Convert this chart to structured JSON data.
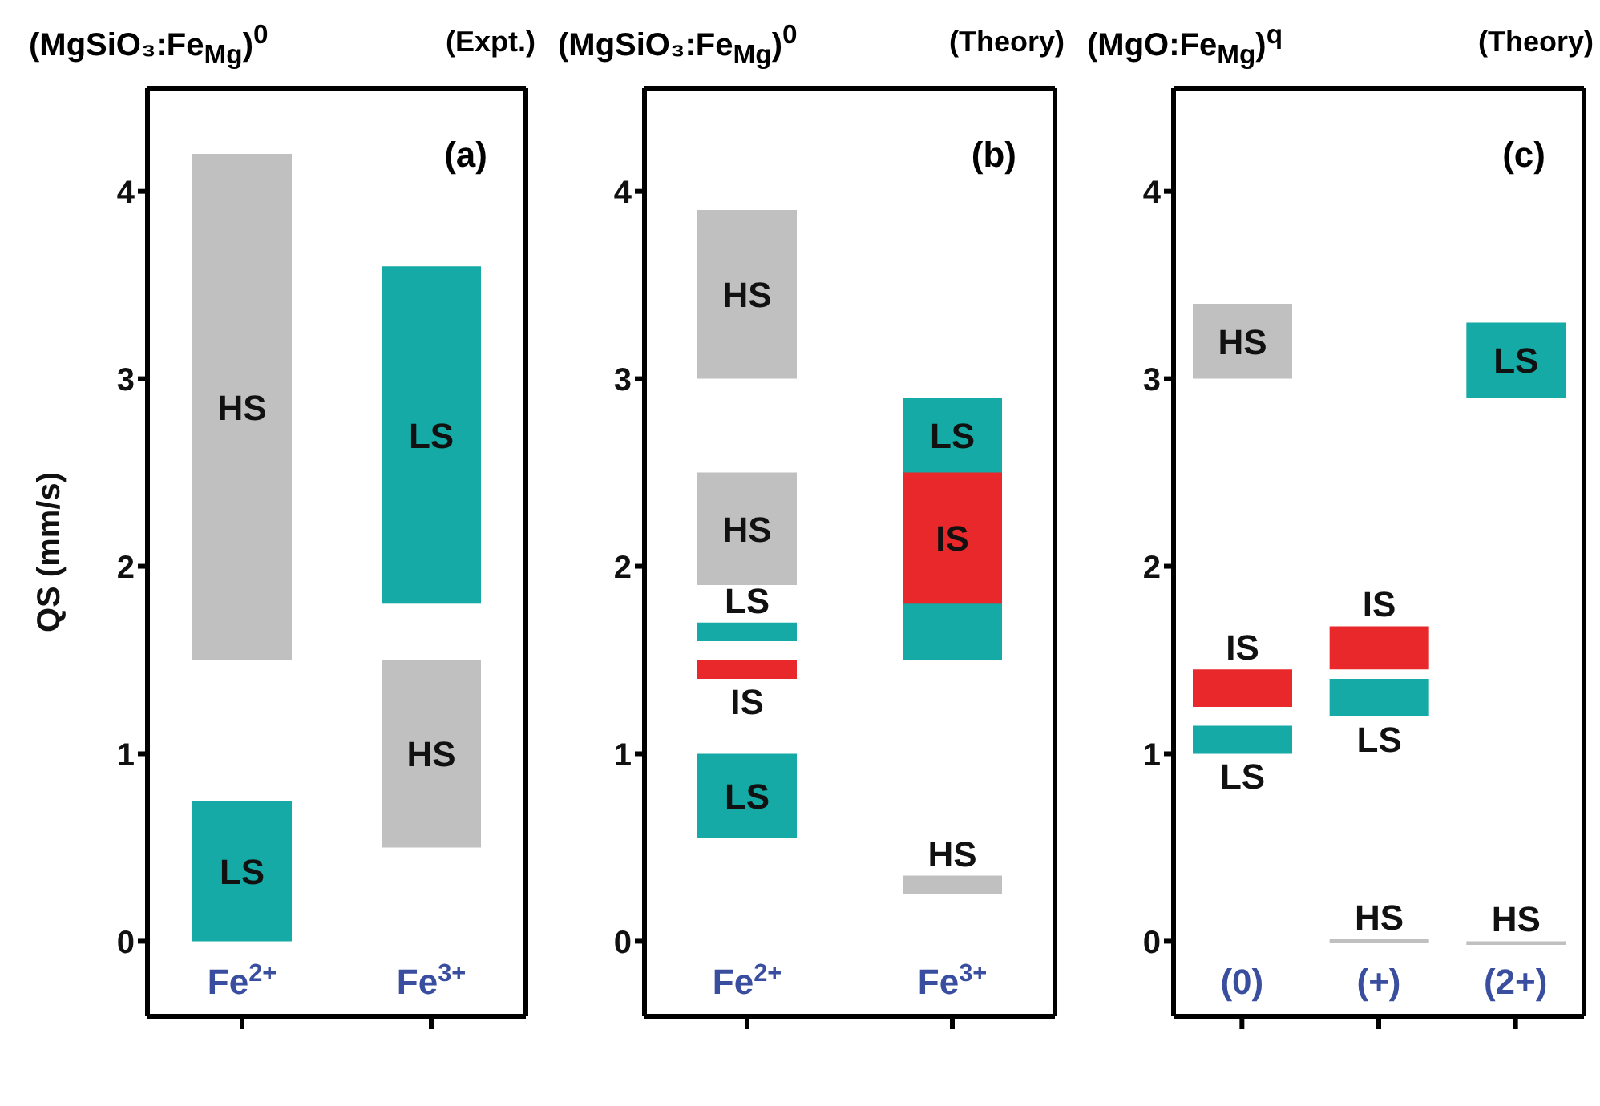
{
  "chart_data": [
    {
      "type": "bar",
      "title": "(MgSiO₃:Fe$_{Mg}$)$^{0}$",
      "subtitle": "(Expt.)",
      "ylabel": "QS (mm/s)",
      "annotations": [
        "(a)"
      ],
      "categories": [
        "Fe$^{2+}$",
        "Fe$^{3+}$"
      ],
      "ylim": [
        -0.4,
        4.55
      ],
      "yticks": [
        0,
        1,
        2,
        3,
        4
      ],
      "legend": false,
      "grid": false,
      "series": [
        {
          "name": "HS",
          "color": "#c0c0c0",
          "base": [
            1.5,
            0.5
          ],
          "values": [
            2.7,
            1.0
          ]
        },
        {
          "name": "LS",
          "color": "#15aaa5",
          "base": [
            0,
            1.8
          ],
          "values": [
            0.75,
            1.8
          ]
        }
      ]
    },
    {
      "type": "bar",
      "title": "(MgSiO₃:Fe$_{Mg}$)$^{0}$",
      "subtitle": "(Theory)",
      "annotations": [
        "(b)"
      ],
      "categories": [
        "Fe$^{2+}$",
        "Fe$^{3+}$"
      ],
      "ylim": [
        -0.4,
        4.55
      ],
      "yticks": [
        0,
        1,
        2,
        3,
        4
      ],
      "legend": false,
      "grid": false,
      "series": [
        {
          "name": "HS",
          "color": "#c0c0c0",
          "base": [
            3.0,
            0.25
          ],
          "values": [
            0.9,
            0.1
          ]
        },
        {
          "name": "HS",
          "color": "#c0c0c0",
          "base": [
            1.9,
            null
          ],
          "values": [
            0.6,
            null
          ]
        },
        {
          "name": "LS",
          "color": "#15aaa5",
          "base": [
            1.6,
            1.5
          ],
          "values": [
            0.1,
            1.4
          ]
        },
        {
          "name": "LS",
          "color": "#15aaa5",
          "base": [
            0.55,
            null
          ],
          "values": [
            0.45,
            null
          ]
        },
        {
          "name": "IS",
          "color": "#e8282a",
          "base": [
            1.4,
            1.8
          ],
          "values": [
            0.1,
            0.7
          ]
        }
      ]
    },
    {
      "type": "bar",
      "title": "(MgO:Fe$_{Mg}$)$^{q}$",
      "subtitle": "(Theory)",
      "annotations": [
        "(c)"
      ],
      "categories": [
        "(0)",
        "(+)",
        "(2+)"
      ],
      "ylim": [
        -0.4,
        4.55
      ],
      "yticks": [
        0,
        1,
        2,
        3,
        4
      ],
      "legend": false,
      "grid": false,
      "series": [
        {
          "name": "HS",
          "color": "#c0c0c0",
          "base": [
            3.0,
            -0.01,
            -0.02
          ],
          "values": [
            0.4,
            0.02,
            0.02
          ]
        },
        {
          "name": "LS",
          "color": "#15aaa5",
          "base": [
            1.0,
            1.2,
            2.9
          ],
          "values": [
            0.15,
            0.2,
            0.4
          ]
        },
        {
          "name": "IS",
          "color": "#e8282a",
          "base": [
            1.25,
            1.45,
            null
          ],
          "values": [
            0.2,
            0.23,
            null
          ]
        }
      ]
    }
  ]
}
